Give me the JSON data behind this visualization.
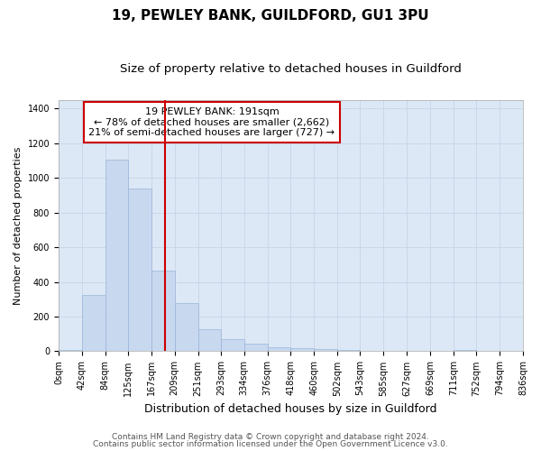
{
  "title1": "19, PEWLEY BANK, GUILDFORD, GU1 3PU",
  "title2": "Size of property relative to detached houses in Guildford",
  "xlabel": "Distribution of detached houses by size in Guildford",
  "ylabel": "Number of detached properties",
  "footer1": "Contains HM Land Registry data © Crown copyright and database right 2024.",
  "footer2": "Contains public sector information licensed under the Open Government Licence v3.0.",
  "annotation_line1": "19 PEWLEY BANK: 191sqm",
  "annotation_line2": "← 78% of detached houses are smaller (2,662)",
  "annotation_line3": "21% of semi-detached houses are larger (727) →",
  "bar_edges": [
    0,
    42,
    84,
    125,
    167,
    209,
    251,
    293,
    334,
    376,
    418,
    460,
    502,
    543,
    585,
    627,
    669,
    711,
    752,
    794,
    836
  ],
  "bar_heights": [
    5,
    325,
    1105,
    940,
    465,
    280,
    128,
    68,
    42,
    22,
    20,
    15,
    8,
    0,
    0,
    0,
    0,
    8,
    0,
    0
  ],
  "bar_color": "#c8d8ef",
  "bar_edgecolor": "#9ab4d8",
  "vline_x": 191,
  "vline_color": "#cc0000",
  "ylim": [
    0,
    1450
  ],
  "yticks": [
    0,
    200,
    400,
    600,
    800,
    1000,
    1200,
    1400
  ],
  "grid_color": "#c8d4e8",
  "bg_color": "#dce8f5",
  "fig_bg_color": "#ffffff",
  "annotation_box_color": "#ffffff",
  "annotation_border_color": "#cc0000",
  "title1_fontsize": 11,
  "title2_fontsize": 9.5,
  "annotation_fontsize": 8,
  "tick_fontsize": 7,
  "xlabel_fontsize": 9,
  "ylabel_fontsize": 8,
  "footer_fontsize": 6.5
}
